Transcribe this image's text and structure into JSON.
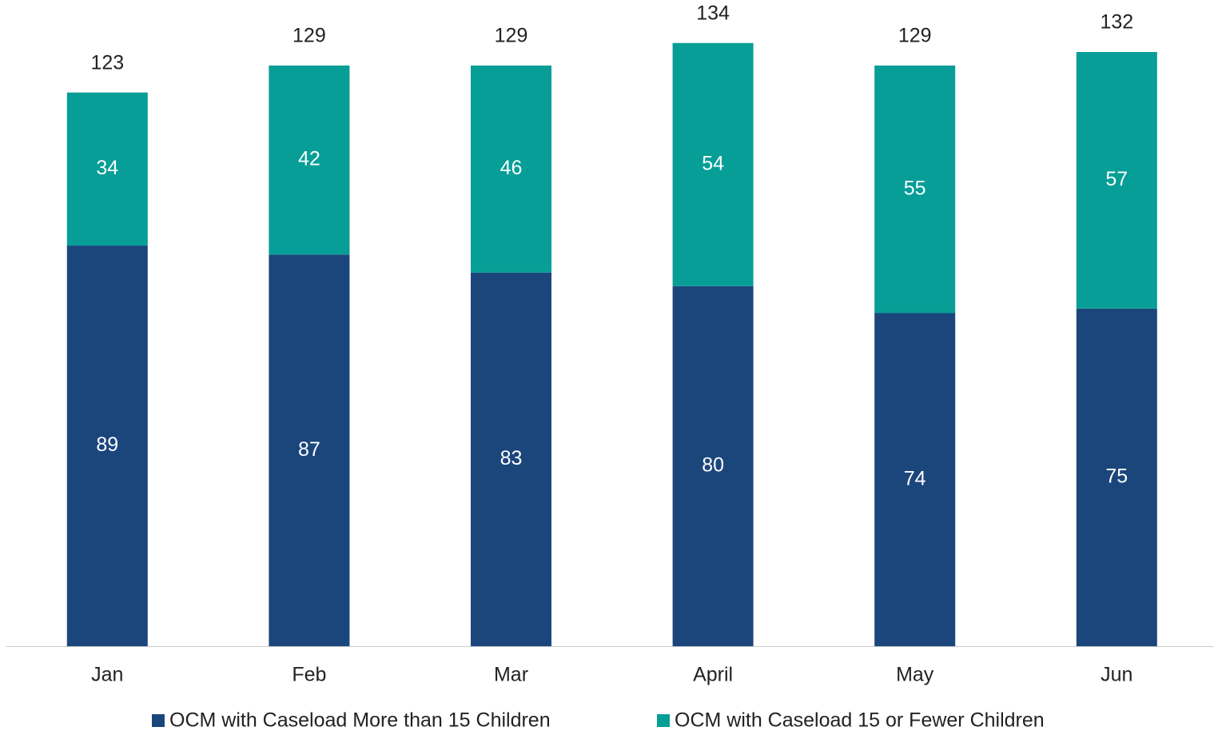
{
  "chart_data": {
    "type": "stacked_bar",
    "categories": [
      "Jan",
      "Feb",
      "Mar",
      "April",
      "May",
      "Jun"
    ],
    "series": [
      {
        "name": "OCM with Caseload More than 15 Children",
        "color": "#1b467c",
        "values": [
          89,
          87,
          83,
          80,
          74,
          75
        ]
      },
      {
        "name": "OCM with Caseload 15 or Fewer Children",
        "color": "#069e96",
        "values": [
          34,
          42,
          46,
          54,
          55,
          57
        ]
      }
    ],
    "totals": [
      123,
      129,
      129,
      134,
      129,
      132
    ],
    "ylim": [
      0,
      140
    ],
    "legend": "bottom"
  }
}
